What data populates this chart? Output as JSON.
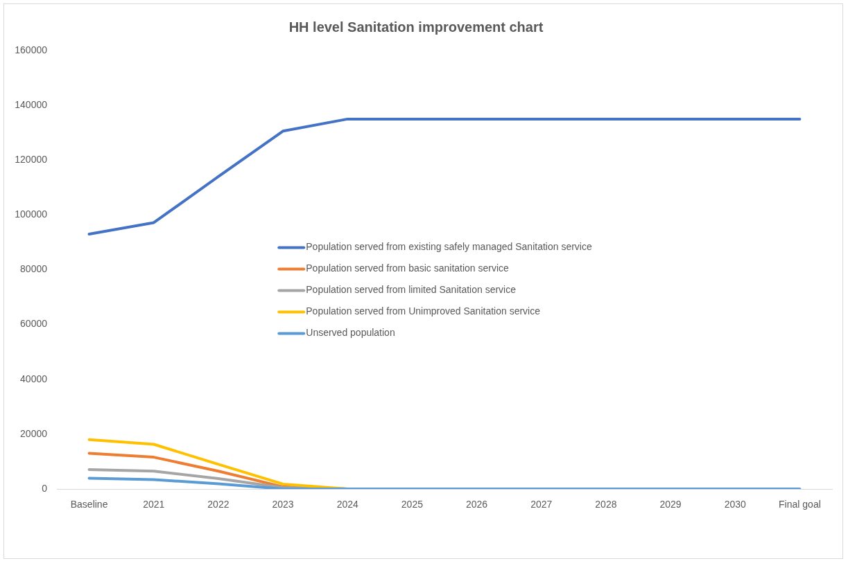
{
  "chart_data": {
    "type": "line",
    "title": "HH level Sanitation improvement chart",
    "categories": [
      "Baseline",
      "2021",
      "2022",
      "2023",
      "2024",
      "2025",
      "2026",
      "2027",
      "2028",
      "2029",
      "2030",
      "Final goal"
    ],
    "series": [
      {
        "name": "Population served from existing safely managed Sanitation service",
        "color": "#4472c4",
        "values": [
          93000,
          97200,
          114000,
          130600,
          135000,
          135000,
          135000,
          135000,
          135000,
          135000,
          135000,
          135000
        ]
      },
      {
        "name": "Population served from basic sanitation service",
        "color": "#ed7d31",
        "values": [
          13000,
          11600,
          6500,
          800,
          0,
          null,
          null,
          null,
          null,
          null,
          null,
          null
        ]
      },
      {
        "name": "Population served from limited Sanitation service",
        "color": "#a5a5a5",
        "values": [
          7100,
          6500,
          3800,
          500,
          0,
          null,
          null,
          null,
          null,
          null,
          null,
          null
        ]
      },
      {
        "name": "Population served from Unimproved Sanitation service",
        "color": "#ffc000",
        "values": [
          18000,
          16300,
          9000,
          1800,
          0,
          null,
          null,
          null,
          null,
          null,
          null,
          null
        ]
      },
      {
        "name": "Unserved population",
        "color": "#5b9bd5",
        "values": [
          3900,
          3400,
          1900,
          0,
          0,
          0,
          0,
          0,
          0,
          0,
          0,
          0
        ]
      }
    ],
    "ylim": [
      0,
      160000
    ],
    "yticks": [
      0,
      20000,
      40000,
      60000,
      80000,
      100000,
      120000,
      140000,
      160000
    ],
    "grid": false,
    "legend": "center",
    "marker": "none",
    "line_style": "solid"
  }
}
